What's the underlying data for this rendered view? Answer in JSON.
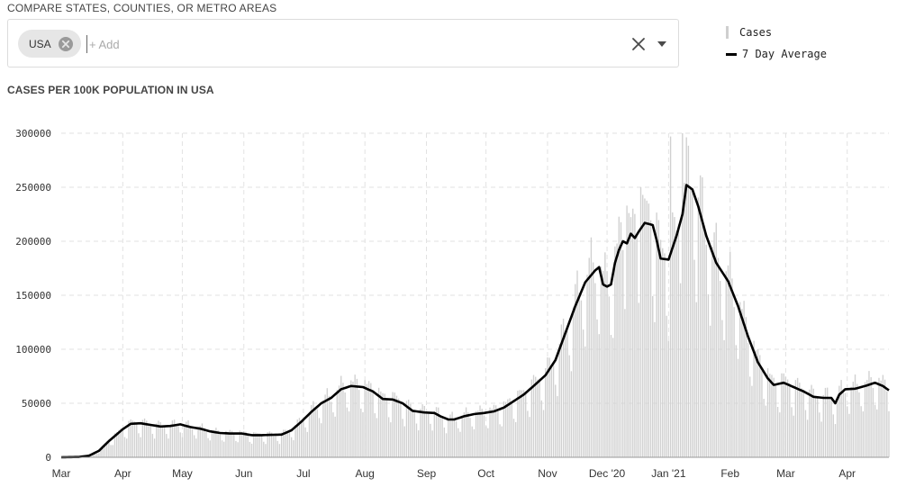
{
  "selector": {
    "label": "COMPARE STATES, COUNTIES, OR METRO AREAS",
    "chips": [
      {
        "label": "USA"
      }
    ],
    "placeholder": "+ Add"
  },
  "legend": {
    "cases_label": "Cases",
    "avg_label": "7 Day Average"
  },
  "chart_title": "CASES PER 100K POPULATION IN USA",
  "chart_data": {
    "type": "bar",
    "title": "CASES PER 100K POPULATION IN USA",
    "xlabel": "",
    "ylabel": "",
    "ylim": [
      0,
      300000
    ],
    "yticks": [
      "0",
      "50000",
      "100000",
      "150000",
      "200000",
      "250000",
      "300000"
    ],
    "x_tick_labels": [
      "Mar",
      "Apr",
      "May",
      "Jun",
      "Jul",
      "Aug",
      "Sep",
      "Oct",
      "Nov",
      "Dec '20",
      "Jan '21",
      "Feb",
      "Mar",
      "Apr"
    ],
    "x_start": "2020-03-01",
    "x_end": "2021-04-22",
    "grid": true,
    "legend_position": "top-right",
    "series": [
      {
        "name": "7 Day Average",
        "type": "line",
        "points": [
          [
            "2020-03-01",
            0
          ],
          [
            "2020-03-10",
            300
          ],
          [
            "2020-03-15",
            1500
          ],
          [
            "2020-03-20",
            6000
          ],
          [
            "2020-03-25",
            15000
          ],
          [
            "2020-04-01",
            26000
          ],
          [
            "2020-04-05",
            31000
          ],
          [
            "2020-04-10",
            31500
          ],
          [
            "2020-04-15",
            30000
          ],
          [
            "2020-04-20",
            28500
          ],
          [
            "2020-04-25",
            29000
          ],
          [
            "2020-04-30",
            30500
          ],
          [
            "2020-05-05",
            28000
          ],
          [
            "2020-05-10",
            26500
          ],
          [
            "2020-05-15",
            24000
          ],
          [
            "2020-05-20",
            22500
          ],
          [
            "2020-05-25",
            22000
          ],
          [
            "2020-05-31",
            22000
          ],
          [
            "2020-06-05",
            20500
          ],
          [
            "2020-06-10",
            20500
          ],
          [
            "2020-06-15",
            20800
          ],
          [
            "2020-06-20",
            21000
          ],
          [
            "2020-06-25",
            25000
          ],
          [
            "2020-06-30",
            33000
          ],
          [
            "2020-07-05",
            42000
          ],
          [
            "2020-07-10",
            50000
          ],
          [
            "2020-07-15",
            55000
          ],
          [
            "2020-07-20",
            63000
          ],
          [
            "2020-07-25",
            66000
          ],
          [
            "2020-07-31",
            65000
          ],
          [
            "2020-08-05",
            61000
          ],
          [
            "2020-08-10",
            54000
          ],
          [
            "2020-08-15",
            53500
          ],
          [
            "2020-08-20",
            50000
          ],
          [
            "2020-08-25",
            43000
          ],
          [
            "2020-08-31",
            41500
          ],
          [
            "2020-09-05",
            41000
          ],
          [
            "2020-09-08",
            38000
          ],
          [
            "2020-09-12",
            35000
          ],
          [
            "2020-09-15",
            35000
          ],
          [
            "2020-09-20",
            38000
          ],
          [
            "2020-09-25",
            40000
          ],
          [
            "2020-09-30",
            41000
          ],
          [
            "2020-10-05",
            42500
          ],
          [
            "2020-10-10",
            46000
          ],
          [
            "2020-10-15",
            52000
          ],
          [
            "2020-10-20",
            58000
          ],
          [
            "2020-10-25",
            66000
          ],
          [
            "2020-10-31",
            76000
          ],
          [
            "2020-11-05",
            90000
          ],
          [
            "2020-11-10",
            115000
          ],
          [
            "2020-11-15",
            140000
          ],
          [
            "2020-11-20",
            162000
          ],
          [
            "2020-11-25",
            173000
          ],
          [
            "2020-11-27",
            176000
          ],
          [
            "2020-11-29",
            160000
          ],
          [
            "2020-12-01",
            158000
          ],
          [
            "2020-12-03",
            160000
          ],
          [
            "2020-12-05",
            180000
          ],
          [
            "2020-12-07",
            192000
          ],
          [
            "2020-12-09",
            200000
          ],
          [
            "2020-12-11",
            198000
          ],
          [
            "2020-12-13",
            207000
          ],
          [
            "2020-12-15",
            203000
          ],
          [
            "2020-12-17",
            209000
          ],
          [
            "2020-12-20",
            217000
          ],
          [
            "2020-12-24",
            215000
          ],
          [
            "2020-12-26",
            201000
          ],
          [
            "2020-12-28",
            184000
          ],
          [
            "2021-01-01",
            183000
          ],
          [
            "2021-01-05",
            205000
          ],
          [
            "2021-01-08",
            225000
          ],
          [
            "2021-01-10",
            252000
          ],
          [
            "2021-01-13",
            248000
          ],
          [
            "2021-01-16",
            232000
          ],
          [
            "2021-01-20",
            205000
          ],
          [
            "2021-01-25",
            180000
          ],
          [
            "2021-01-31",
            163000
          ],
          [
            "2021-02-05",
            140000
          ],
          [
            "2021-02-10",
            112000
          ],
          [
            "2021-02-15",
            88000
          ],
          [
            "2021-02-20",
            73000
          ],
          [
            "2021-02-23",
            67000
          ],
          [
            "2021-02-28",
            69000
          ],
          [
            "2021-03-05",
            65000
          ],
          [
            "2021-03-10",
            61000
          ],
          [
            "2021-03-15",
            56000
          ],
          [
            "2021-03-20",
            55000
          ],
          [
            "2021-03-24",
            55000
          ],
          [
            "2021-03-26",
            50000
          ],
          [
            "2021-03-28",
            58000
          ],
          [
            "2021-03-31",
            63000
          ],
          [
            "2021-04-05",
            63500
          ],
          [
            "2021-04-10",
            66000
          ],
          [
            "2021-04-15",
            69000
          ],
          [
            "2021-04-19",
            66000
          ],
          [
            "2021-04-22",
            62000
          ]
        ]
      }
    ],
    "cases_bars": {
      "name": "Cases",
      "type": "bar",
      "note": "daily values fluctuate around the 7 day average with a weekly reporting cycle",
      "highlights": [
        [
          "2021-01-02",
          297000
        ],
        [
          "2021-01-08",
          300000
        ],
        [
          "2020-12-18",
          250000
        ],
        [
          "2020-12-11",
          233000
        ]
      ]
    }
  },
  "colors": {
    "bar": "#d0d0d0",
    "line": "#000000",
    "grid": "#e2e2e2"
  }
}
